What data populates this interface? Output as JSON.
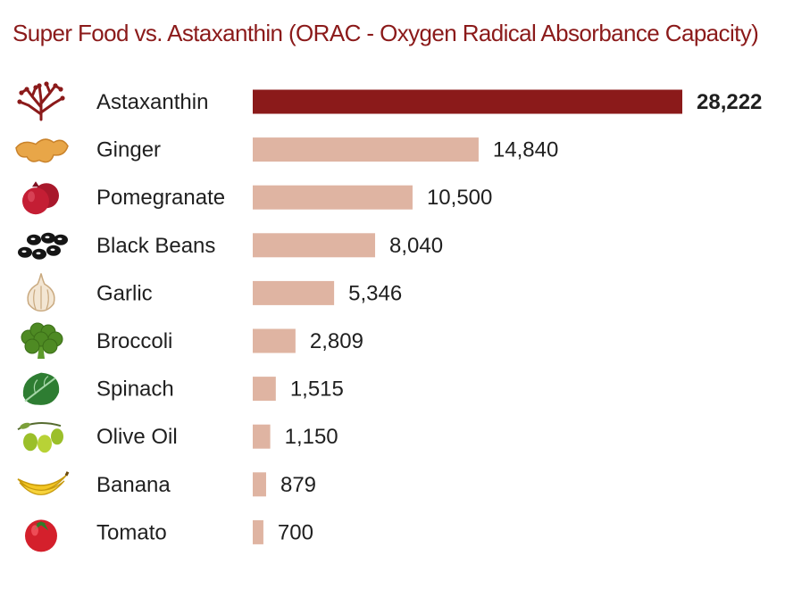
{
  "colors": {
    "title": "#8b1a1a",
    "highlight_bar": "#8b1a1a",
    "bar": "#dfb4a2",
    "text": "#1f1f1f"
  },
  "chart_data": {
    "type": "bar",
    "orientation": "horizontal",
    "title": "Super Food vs. Astaxanthin (ORAC - Oxygen Radical Absorbance Capacity)",
    "categories": [
      "Astaxanthin",
      "Ginger",
      "Pomegranate",
      "Black Beans",
      "Garlic",
      "Broccoli",
      "Spinach",
      "Olive Oil",
      "Banana",
      "Tomato"
    ],
    "values": [
      28222,
      14840,
      10500,
      8040,
      5346,
      2809,
      1515,
      1150,
      879,
      700
    ],
    "value_labels": [
      "28,222",
      "14,840",
      "10,500",
      "8,040",
      "5,346",
      "2,809",
      "1,515",
      "1,150",
      "879",
      "700"
    ],
    "icons": [
      "seaweed-icon",
      "ginger-icon",
      "pomegranate-icon",
      "black-beans-icon",
      "garlic-icon",
      "broccoli-icon",
      "spinach-icon",
      "olive-oil-icon",
      "banana-icon",
      "tomato-icon"
    ],
    "highlight_index": 0,
    "xlim": [
      0,
      28222
    ],
    "grid": false,
    "legend": "none"
  }
}
